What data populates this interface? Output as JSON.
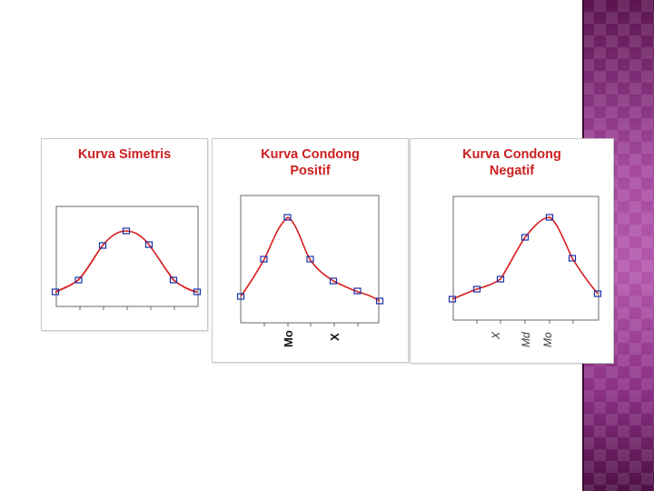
{
  "slide": {
    "accent_strip_color": "#8e2f86"
  },
  "diagrams": [
    {
      "title_lines": [
        "Kurva Simetris"
      ],
      "x_labels": []
    },
    {
      "title_lines": [
        "Kurva Condong",
        "Positif"
      ],
      "x_labels": [
        "Mo",
        "X"
      ]
    },
    {
      "title_lines": [
        "Kurva Condong",
        "Negatif"
      ],
      "x_labels": [
        "X",
        "Md",
        "Mo"
      ]
    }
  ],
  "colors": {
    "title": "#cc1f1f",
    "curve": "#d81e1e",
    "marker": "#1a2fa8",
    "frame": "#6a6a6a"
  }
}
